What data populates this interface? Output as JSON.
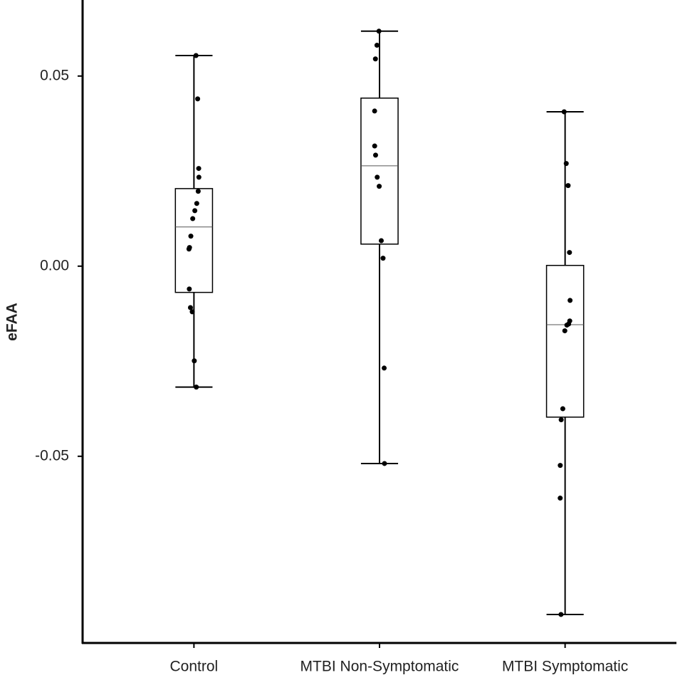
{
  "chart_data": {
    "type": "box",
    "y_label": "eFAA",
    "categories": [
      "Control",
      "MTBI Non-Symptomatic",
      "MTBI Symptomatic"
    ],
    "boxes": [
      {
        "whisker_low": -0.0318,
        "q1": -0.0069,
        "median": 0.0103,
        "q3": 0.0204,
        "whisker_high": 0.0554,
        "points": [
          0.0554,
          0.044,
          0.0257,
          0.0234,
          0.0197,
          0.0165,
          0.0146,
          0.0125,
          0.0079,
          0.0049,
          0.0045,
          -0.006,
          -0.0109,
          -0.012,
          -0.0249,
          -0.0318
        ]
      },
      {
        "whisker_low": -0.0519,
        "q1": 0.0058,
        "median": 0.0264,
        "q3": 0.0442,
        "whisker_high": 0.0618,
        "points": [
          0.0618,
          0.0581,
          0.0545,
          0.0408,
          0.0316,
          0.0292,
          0.0234,
          0.021,
          0.0067,
          0.0021,
          -0.0268,
          -0.0519
        ]
      },
      {
        "whisker_low": -0.0916,
        "q1": -0.0397,
        "median": -0.0154,
        "q3": 0.0002,
        "whisker_high": 0.0406,
        "points": [
          0.0406,
          0.027,
          0.0212,
          0.0036,
          -0.009,
          -0.0144,
          -0.0152,
          -0.0155,
          -0.017,
          -0.0375,
          -0.0404,
          -0.0524,
          -0.061,
          -0.0916
        ]
      }
    ],
    "ylim": [
      -0.0991,
      0.07
    ],
    "yticks": [
      -0.05,
      {
        "value": 0,
        "label": "0.00"
      },
      0.05
    ]
  }
}
